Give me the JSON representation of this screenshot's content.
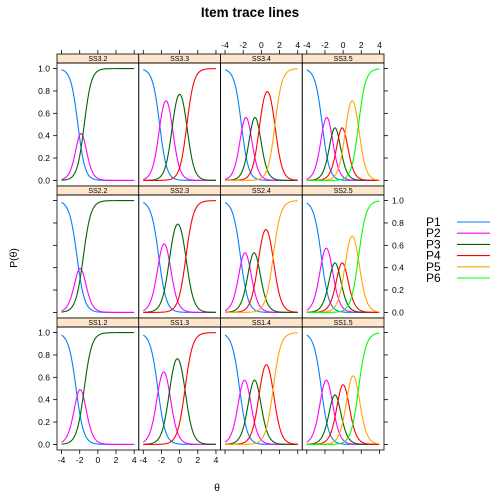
{
  "chart_data": {
    "type": "line",
    "title": "Item trace lines",
    "xlabel": "θ",
    "ylabel": "P(θ)",
    "xlim": [
      -4.5,
      4.5
    ],
    "ylim": [
      -0.05,
      1.05
    ],
    "x_ticks": [
      -4,
      -2,
      0,
      2,
      4
    ],
    "y_ticks": [
      0.0,
      0.2,
      0.4,
      0.6,
      0.8,
      1.0
    ],
    "layout": {
      "rows": 3,
      "cols": 4
    },
    "legend": {
      "placement": "right",
      "entries": [
        {
          "name": "P1",
          "color": "#0080ff"
        },
        {
          "name": "P2",
          "color": "#ff00ff"
        },
        {
          "name": "P3",
          "color": "#006400"
        },
        {
          "name": "P4",
          "color": "#ff0000"
        },
        {
          "name": "P5",
          "color": "#ffa500"
        },
        {
          "name": "P6",
          "color": "#00ff00"
        }
      ]
    },
    "strip_color": "#ffe5cc",
    "panels": [
      {
        "label": "SS3.2",
        "row": 0,
        "col": 0,
        "a": 1.5,
        "b": [
          -2.2,
          -1.5
        ]
      },
      {
        "label": "SS3.3",
        "row": 0,
        "col": 1,
        "a": 1.5,
        "b": [
          -2.2,
          -0.8,
          0.8
        ]
      },
      {
        "label": "SS3.4",
        "row": 0,
        "col": 2,
        "a": 1.5,
        "b": [
          -2.2,
          -1.2,
          -0.2,
          1.5
        ]
      },
      {
        "label": "SS3.5",
        "row": 0,
        "col": 3,
        "a": 1.5,
        "b": [
          -2.3,
          -1.3,
          -0.5,
          0.3,
          1.7
        ]
      },
      {
        "label": "SS2.2",
        "row": 1,
        "col": 0,
        "a": 1.4,
        "b": [
          -2.3,
          -1.6
        ]
      },
      {
        "label": "SS2.3",
        "row": 1,
        "col": 1,
        "a": 1.4,
        "b": [
          -2.3,
          -1.1,
          0.7
        ]
      },
      {
        "label": "SS2.4",
        "row": 1,
        "col": 2,
        "a": 1.4,
        "b": [
          -2.3,
          -1.3,
          -0.3,
          1.3
        ]
      },
      {
        "label": "SS2.5",
        "row": 1,
        "col": 3,
        "a": 1.4,
        "b": [
          -2.4,
          -1.3,
          -0.5,
          0.3,
          1.7
        ]
      },
      {
        "label": "SS1.2",
        "row": 2,
        "col": 0,
        "a": 1.4,
        "b": [
          -2.4,
          -1.5
        ]
      },
      {
        "label": "SS1.3",
        "row": 2,
        "col": 1,
        "a": 1.4,
        "b": [
          -2.4,
          -1.1,
          0.6
        ]
      },
      {
        "label": "SS1.4",
        "row": 2,
        "col": 2,
        "a": 1.4,
        "b": [
          -2.4,
          -1.3,
          -0.2,
          1.3
        ]
      },
      {
        "label": "SS1.5",
        "row": 2,
        "col": 3,
        "a": 1.4,
        "b": [
          -2.4,
          -1.3,
          -0.5,
          0.5,
          1.7
        ]
      }
    ]
  }
}
